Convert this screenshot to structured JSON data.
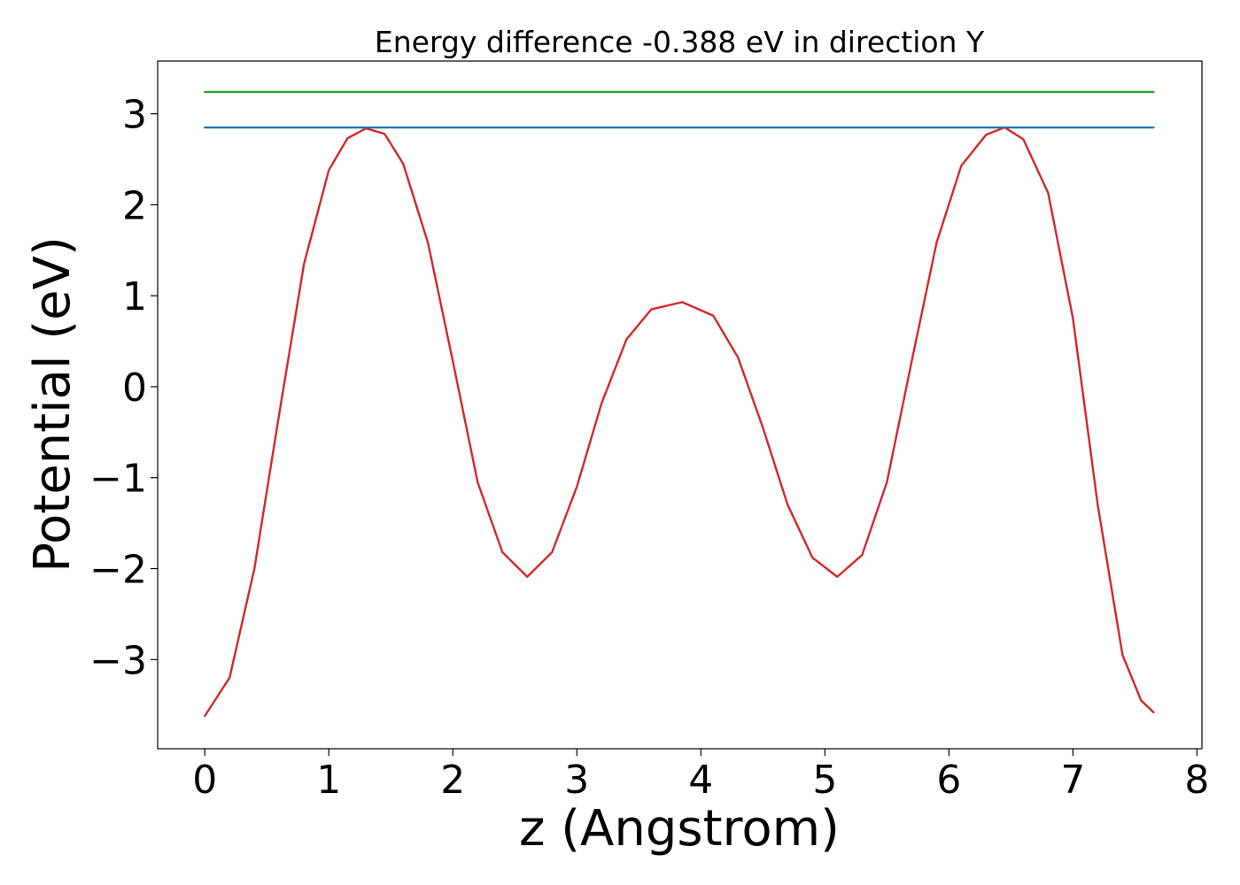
{
  "chart_data": {
    "type": "line",
    "title": "Energy difference -0.388 eV in direction Y",
    "xlabel": "z (Angstrom)",
    "ylabel": "Potential (eV)",
    "xlim": [
      -0.38,
      8.04
    ],
    "ylim": [
      -3.98,
      3.58
    ],
    "xticks": [
      0,
      1,
      2,
      3,
      4,
      5,
      6,
      7,
      8
    ],
    "xtick_labels": [
      "0",
      "1",
      "2",
      "3",
      "4",
      "5",
      "6",
      "7",
      "8"
    ],
    "yticks": [
      -3,
      -2,
      -1,
      0,
      1,
      2,
      3
    ],
    "ytick_labels": [
      "−3",
      "−2",
      "−1",
      "0",
      "1",
      "2",
      "3"
    ],
    "grid": false,
    "series": [
      {
        "color": "#d62728",
        "x": [
          0,
          0.2,
          0.4,
          0.6,
          0.8,
          1.0,
          1.15,
          1.3,
          1.45,
          1.6,
          1.8,
          2.0,
          2.2,
          2.4,
          2.6,
          2.8,
          3.0,
          3.2,
          3.4,
          3.6,
          3.85,
          4.1,
          4.3,
          4.5,
          4.7,
          4.9,
          5.1,
          5.3,
          5.5,
          5.7,
          5.9,
          6.1,
          6.3,
          6.45,
          6.6,
          6.8,
          7.0,
          7.2,
          7.4,
          7.55,
          7.65
        ],
        "y": [
          -3.62,
          -3.2,
          -2.0,
          -0.3,
          1.35,
          2.38,
          2.73,
          2.84,
          2.78,
          2.45,
          1.58,
          0.28,
          -1.05,
          -1.82,
          -2.09,
          -1.82,
          -1.1,
          -0.18,
          0.52,
          0.85,
          0.93,
          0.78,
          0.32,
          -0.45,
          -1.3,
          -1.88,
          -2.09,
          -1.85,
          -1.05,
          0.28,
          1.58,
          2.43,
          2.77,
          2.85,
          2.72,
          2.13,
          0.75,
          -1.3,
          -2.95,
          -3.45,
          -3.58
        ]
      },
      {
        "color": "#1f77b4",
        "x": [
          0,
          7.65
        ],
        "y": [
          2.85,
          2.85
        ]
      },
      {
        "color": "#2ca02c",
        "x": [
          0,
          7.65
        ],
        "y": [
          3.24,
          3.24
        ]
      }
    ]
  }
}
